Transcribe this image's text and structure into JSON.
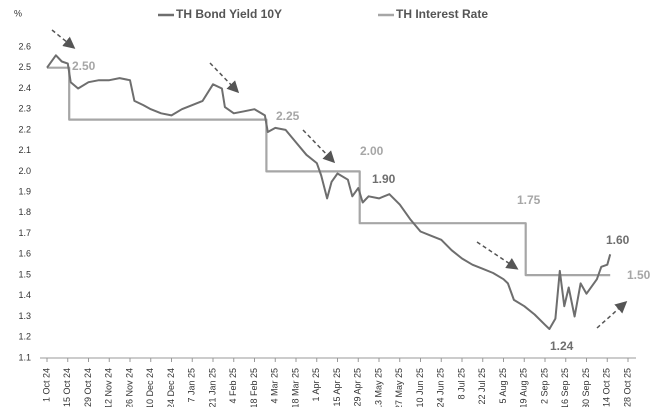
{
  "chart_data": {
    "type": "line",
    "y_label": "%",
    "xlim": [
      "2024-10-01",
      "2025-10-28"
    ],
    "ylim": [
      1.1,
      2.6
    ],
    "yticks": [
      1.1,
      1.2,
      1.3,
      1.4,
      1.5,
      1.6,
      1.7,
      1.8,
      1.9,
      {
        "value": 2,
        "label": "2.0"
      },
      2.1,
      2.2,
      2.3,
      2.4,
      2.5,
      2.6
    ],
    "xticks": [
      {
        "value": "2024-10-01",
        "label": "1 Oct 24"
      },
      {
        "value": "2024-10-15",
        "label": "15 Oct 24"
      },
      {
        "value": "2024-10-29",
        "label": "29 Oct 24"
      },
      {
        "value": "2024-11-12",
        "label": "12 Nov 24"
      },
      {
        "value": "2024-11-26",
        "label": "26 Nov 24"
      },
      {
        "value": "2024-12-10",
        "label": "10 Dec 24"
      },
      {
        "value": "2024-12-24",
        "label": "24 Dec 24"
      },
      {
        "value": "2025-01-07",
        "label": "7 Jan 25"
      },
      {
        "value": "2025-01-21",
        "label": "21 Jan 25"
      },
      {
        "value": "2025-02-04",
        "label": "4 Feb 25"
      },
      {
        "value": "2025-02-18",
        "label": "18 Feb 25"
      },
      {
        "value": "2025-03-04",
        "label": "4 Mar 25"
      },
      {
        "value": "2025-03-18",
        "label": "18 Mar 25"
      },
      {
        "value": "2025-04-01",
        "label": "1 Apr 25"
      },
      {
        "value": "2025-04-15",
        "label": "15 Apr 25"
      },
      {
        "value": "2025-04-29",
        "label": "29 Apr 25"
      },
      {
        "value": "2025-05-13",
        "label": "13 May 25"
      },
      {
        "value": "2025-05-27",
        "label": "27 May 25"
      },
      {
        "value": "2025-06-10",
        "label": "10 Jun 25"
      },
      {
        "value": "2025-06-24",
        "label": "24 Jun 25"
      },
      {
        "value": "2025-07-08",
        "label": "8 Jul 25"
      },
      {
        "value": "2025-07-22",
        "label": "22 Jul 25"
      },
      {
        "value": "2025-08-05",
        "label": "5 Aug 25"
      },
      {
        "value": "2025-08-19",
        "label": "19 Aug 25"
      },
      {
        "value": "2025-09-02",
        "label": "2 Sep 25"
      },
      {
        "value": "2025-09-16",
        "label": "16 Sep 25"
      },
      {
        "value": "2025-09-30",
        "label": "30 Sep 25"
      },
      {
        "value": "2025-10-14",
        "label": "14 Oct 25"
      },
      {
        "value": "2025-10-28",
        "label": "28 Oct 25"
      }
    ],
    "series": [
      {
        "name": "TH Bond Yield 10Y",
        "color": "#6e6e6e",
        "x": [
          "2024-10-01",
          "2024-10-07",
          "2024-10-11",
          "2024-10-15",
          "2024-10-17",
          "2024-10-22",
          "2024-10-29",
          "2024-11-05",
          "2024-11-12",
          "2024-11-19",
          "2024-11-26",
          "2024-11-29",
          "2024-12-05",
          "2024-12-10",
          "2024-12-17",
          "2024-12-24",
          "2024-12-31",
          "2025-01-07",
          "2025-01-14",
          "2025-01-21",
          "2025-01-27",
          "2025-01-29",
          "2025-02-04",
          "2025-02-11",
          "2025-02-18",
          "2025-02-25",
          "2025-02-27",
          "2025-03-04",
          "2025-03-11",
          "2025-03-18",
          "2025-03-25",
          "2025-04-01",
          "2025-04-04",
          "2025-04-08",
          "2025-04-11",
          "2025-04-15",
          "2025-04-22",
          "2025-04-25",
          "2025-04-29",
          "2025-05-02",
          "2025-05-06",
          "2025-05-13",
          "2025-05-20",
          "2025-05-27",
          "2025-06-03",
          "2025-06-10",
          "2025-06-17",
          "2025-06-24",
          "2025-07-01",
          "2025-07-08",
          "2025-07-15",
          "2025-07-22",
          "2025-07-29",
          "2025-08-05",
          "2025-08-08",
          "2025-08-12",
          "2025-08-19",
          "2025-08-26",
          "2025-09-02",
          "2025-09-05",
          "2025-09-09",
          "2025-09-12",
          "2025-09-15",
          "2025-09-18",
          "2025-09-22",
          "2025-09-26",
          "2025-09-30",
          "2025-10-07",
          "2025-10-10",
          "2025-10-14",
          "2025-10-16"
        ],
        "values": [
          2.5,
          2.56,
          2.53,
          2.52,
          2.43,
          2.4,
          2.43,
          2.44,
          2.44,
          2.45,
          2.44,
          2.34,
          2.32,
          2.3,
          2.28,
          2.27,
          2.3,
          2.32,
          2.34,
          2.42,
          2.4,
          2.31,
          2.28,
          2.29,
          2.3,
          2.27,
          2.19,
          2.21,
          2.2,
          2.14,
          2.08,
          2.04,
          1.98,
          1.87,
          1.95,
          1.99,
          1.96,
          1.88,
          1.92,
          1.85,
          1.88,
          1.87,
          1.89,
          1.84,
          1.77,
          1.71,
          1.69,
          1.67,
          1.62,
          1.58,
          1.55,
          1.53,
          1.51,
          1.48,
          1.46,
          1.38,
          1.35,
          1.31,
          1.26,
          1.24,
          1.29,
          1.52,
          1.35,
          1.44,
          1.3,
          1.46,
          1.41,
          1.48,
          1.54,
          1.55,
          1.6
        ]
      },
      {
        "name": "TH Interest Rate",
        "color": "#a6a6a6",
        "x": [
          "2024-10-01",
          "2024-10-16",
          "2024-10-16",
          "2025-02-26",
          "2025-02-26",
          "2025-04-30",
          "2025-04-30",
          "2025-08-20",
          "2025-08-20",
          "2025-10-16"
        ],
        "values": [
          2.5,
          2.5,
          2.25,
          2.25,
          2.0,
          2.0,
          1.75,
          1.75,
          1.5,
          1.5
        ]
      }
    ],
    "annotations": [
      "2.50",
      "2.25",
      "2.00",
      "1.90",
      "1.75",
      "1.60",
      "1.50",
      "1.24"
    ]
  }
}
